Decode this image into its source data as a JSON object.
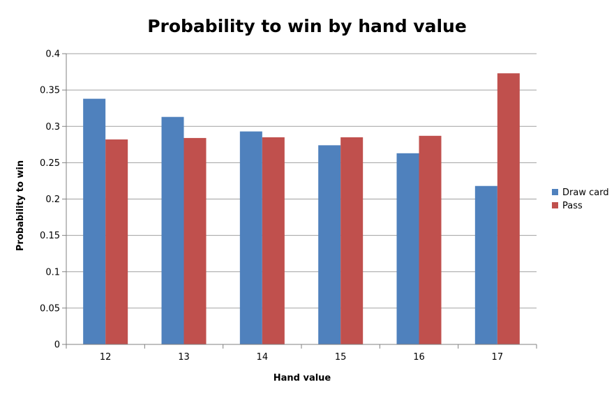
{
  "chart_data": {
    "type": "bar",
    "title": "Probability to win by hand value",
    "xlabel": "Hand value",
    "ylabel": "Probability to win",
    "categories": [
      "12",
      "13",
      "14",
      "15",
      "16",
      "17"
    ],
    "series": [
      {
        "name": "Draw card",
        "color": "#4f81bd",
        "values": [
          0.338,
          0.313,
          0.293,
          0.274,
          0.263,
          0.218
        ]
      },
      {
        "name": "Pass",
        "color": "#c0504d",
        "values": [
          0.282,
          0.284,
          0.285,
          0.285,
          0.287,
          0.373
        ]
      }
    ],
    "ylim": [
      0,
      0.4
    ],
    "yticks": [
      "0",
      "0.05",
      "0.1",
      "0.15",
      "0.2",
      "0.25",
      "0.3",
      "0.35",
      "0.4"
    ],
    "grid": true,
    "legend_position": "right"
  }
}
